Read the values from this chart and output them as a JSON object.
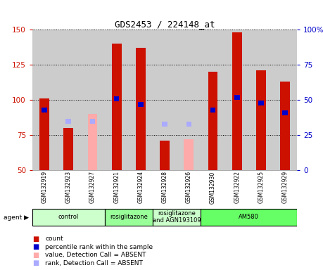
{
  "title": "GDS2453 / 224148_at",
  "samples": [
    "GSM132919",
    "GSM132923",
    "GSM132927",
    "GSM132921",
    "GSM132924",
    "GSM132928",
    "GSM132926",
    "GSM132930",
    "GSM132922",
    "GSM132925",
    "GSM132929"
  ],
  "count_values": [
    101,
    80,
    null,
    140,
    137,
    71,
    null,
    120,
    148,
    121,
    113
  ],
  "count_absent": [
    null,
    null,
    90,
    null,
    null,
    null,
    72,
    null,
    null,
    null,
    null
  ],
  "rank_present": [
    43,
    null,
    null,
    51,
    47,
    null,
    null,
    43,
    52,
    48,
    41
  ],
  "rank_absent": [
    null,
    35,
    35,
    null,
    null,
    33,
    33,
    null,
    null,
    null,
    null
  ],
  "ylim_left": [
    50,
    150
  ],
  "ylim_right": [
    0,
    100
  ],
  "left_ticks": [
    50,
    75,
    100,
    125,
    150
  ],
  "right_ticks": [
    0,
    25,
    50,
    75,
    100
  ],
  "agent_groups": [
    {
      "label": "control",
      "start": 0,
      "end": 3,
      "color": "#ccffcc"
    },
    {
      "label": "rosiglitazone",
      "start": 3,
      "end": 5,
      "color": "#99ff99"
    },
    {
      "label": "rosiglitazone\nand AGN193109",
      "start": 5,
      "end": 7,
      "color": "#ccffcc"
    },
    {
      "label": "AM580",
      "start": 7,
      "end": 11,
      "color": "#66ff66"
    }
  ],
  "bar_width": 0.4,
  "count_color": "#cc1100",
  "count_absent_color": "#ffaaaa",
  "rank_present_color": "#0000cc",
  "rank_absent_color": "#aaaaff",
  "background_color": "#ffffff",
  "tick_area_color": "#cccccc"
}
